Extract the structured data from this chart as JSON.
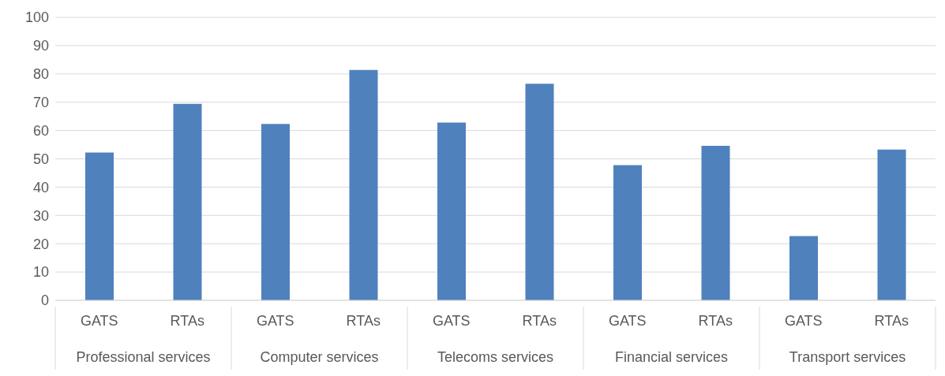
{
  "chart_data": {
    "type": "bar",
    "categories": [
      "GATS",
      "RTAs",
      "GATS",
      "RTAs",
      "GATS",
      "RTAs",
      "GATS",
      "RTAs",
      "GATS",
      "RTAs"
    ],
    "values": [
      52.2,
      69.4,
      62.3,
      81.4,
      62.8,
      76.5,
      47.8,
      54.6,
      22.7,
      53.3
    ],
    "color": "#4f81bd",
    "ylim": [
      0,
      100
    ],
    "yticks": [
      0,
      10,
      20,
      30,
      40,
      50,
      60,
      70,
      80,
      90,
      100
    ],
    "grid": "y",
    "annotations": [
      "Professional services",
      "Computer services",
      "Telecoms services",
      "Financial services",
      "Transport services"
    ]
  }
}
